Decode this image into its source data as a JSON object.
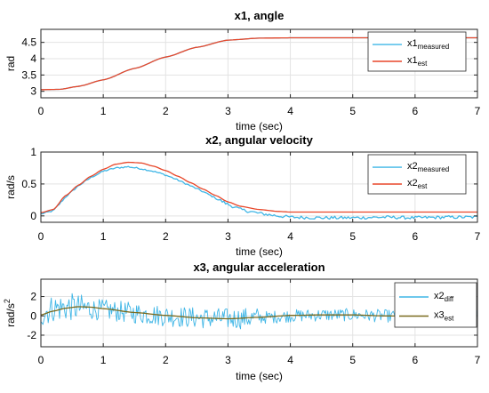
{
  "chart_data": [
    {
      "type": "line",
      "title": "x1, angle",
      "xlabel": "time (sec)",
      "ylabel": "rad",
      "xlim": [
        0,
        7
      ],
      "ylim": [
        2.8,
        4.9
      ],
      "xticks": [
        "0",
        "1",
        "2",
        "3",
        "4",
        "5",
        "6",
        "7"
      ],
      "yticks": [
        "3",
        "3.5",
        "4",
        "4.5"
      ],
      "grid": true,
      "legend": {
        "placement": "top-right",
        "entries": [
          {
            "main": "x1",
            "sub": "measured"
          },
          {
            "main": "x1",
            "sub": "est"
          }
        ]
      },
      "series": [
        {
          "name": "x1 measured",
          "color": "#3fb6e6",
          "x": [
            0,
            0.3,
            0.6,
            1,
            1.5,
            2,
            2.5,
            3,
            3.5,
            4,
            5,
            6,
            7
          ],
          "y": [
            3.05,
            3.06,
            3.15,
            3.35,
            3.7,
            4.05,
            4.35,
            4.57,
            4.63,
            4.64,
            4.64,
            4.64,
            4.64
          ]
        },
        {
          "name": "x1 est",
          "color": "#e8472a",
          "x": [
            0,
            0.3,
            0.6,
            1,
            1.5,
            2,
            2.5,
            3,
            3.5,
            4,
            5,
            6,
            7
          ],
          "y": [
            3.05,
            3.06,
            3.15,
            3.35,
            3.7,
            4.05,
            4.35,
            4.57,
            4.63,
            4.64,
            4.64,
            4.64,
            4.64
          ]
        }
      ]
    },
    {
      "type": "line",
      "title": "x2, angular velocity",
      "xlabel": "time (sec)",
      "ylabel": "rad/s",
      "xlim": [
        0,
        7
      ],
      "ylim": [
        -0.1,
        1.0
      ],
      "xticks": [
        "0",
        "1",
        "2",
        "3",
        "4",
        "5",
        "6",
        "7"
      ],
      "yticks": [
        "0",
        "0.5",
        "1"
      ],
      "grid": true,
      "legend": {
        "placement": "top-right",
        "entries": [
          {
            "main": "x2",
            "sub": "measured"
          },
          {
            "main": "x2",
            "sub": "est"
          }
        ]
      },
      "series": [
        {
          "name": "x2 measured",
          "color": "#3fb6e6",
          "x": [
            0,
            0.2,
            0.4,
            0.6,
            0.8,
            1,
            1.2,
            1.4,
            1.6,
            1.8,
            2,
            2.2,
            2.4,
            2.6,
            2.8,
            3,
            3.2,
            3.5,
            3.8,
            4,
            4.5,
            5,
            5.5,
            6,
            6.5,
            7
          ],
          "y": [
            0.03,
            0.08,
            0.3,
            0.47,
            0.6,
            0.7,
            0.75,
            0.77,
            0.74,
            0.7,
            0.64,
            0.56,
            0.47,
            0.38,
            0.28,
            0.18,
            0.1,
            0.04,
            0.0,
            -0.02,
            -0.03,
            -0.03,
            -0.02,
            -0.03,
            -0.02,
            -0.02
          ]
        },
        {
          "name": "x2 est",
          "color": "#e8472a",
          "x": [
            0,
            0.2,
            0.4,
            0.6,
            0.8,
            1,
            1.2,
            1.4,
            1.6,
            1.8,
            2,
            2.2,
            2.4,
            2.6,
            2.8,
            3,
            3.2,
            3.5,
            3.8,
            4,
            4.5,
            5,
            5.5,
            6,
            6.5,
            7
          ],
          "y": [
            0.05,
            0.1,
            0.32,
            0.48,
            0.62,
            0.73,
            0.81,
            0.84,
            0.83,
            0.78,
            0.71,
            0.62,
            0.52,
            0.42,
            0.32,
            0.22,
            0.15,
            0.1,
            0.07,
            0.06,
            0.06,
            0.06,
            0.06,
            0.06,
            0.06,
            0.06
          ]
        }
      ]
    },
    {
      "type": "line",
      "title": "x3, angular acceleration",
      "xlabel": "time (sec)",
      "ylabel": "rad/s2",
      "xlim": [
        0,
        7
      ],
      "ylim": [
        -3.2,
        3.8
      ],
      "xticks": [
        "0",
        "1",
        "2",
        "3",
        "4",
        "5",
        "6",
        "7"
      ],
      "yticks": [
        "-2",
        "0",
        "2"
      ],
      "grid": true,
      "legend": {
        "placement": "top-right",
        "entries": [
          {
            "main": "x2",
            "sub": "diff"
          },
          {
            "main": "x3",
            "sub": "est"
          }
        ]
      },
      "series": [
        {
          "name": "x2 diff",
          "color": "#3fb6e6",
          "noise_amplitude": 1.1,
          "x": [
            0,
            0.2,
            0.5,
            1,
            1.5,
            2,
            2.5,
            3,
            3.5,
            4,
            4.5,
            5,
            5.5,
            6,
            6.5,
            7
          ],
          "y": [
            0.2,
            0.8,
            0.9,
            0.6,
            0.3,
            0.0,
            -0.2,
            -0.3,
            -0.2,
            0.0,
            0.1,
            0.1,
            0.0,
            -0.1,
            0.0,
            0.0
          ]
        },
        {
          "name": "x3 est",
          "color": "#7a6a1e",
          "x": [
            0,
            0.2,
            0.4,
            0.6,
            0.8,
            1,
            1.5,
            2,
            2.5,
            3,
            3.5,
            4,
            4.5,
            5,
            5.5,
            6,
            6.5,
            7
          ],
          "y": [
            0.1,
            0.5,
            0.8,
            0.95,
            0.9,
            0.75,
            0.35,
            0.05,
            -0.2,
            -0.3,
            -0.15,
            0.05,
            0.1,
            0.1,
            0.0,
            -0.05,
            0.0,
            0.0
          ]
        }
      ]
    }
  ]
}
